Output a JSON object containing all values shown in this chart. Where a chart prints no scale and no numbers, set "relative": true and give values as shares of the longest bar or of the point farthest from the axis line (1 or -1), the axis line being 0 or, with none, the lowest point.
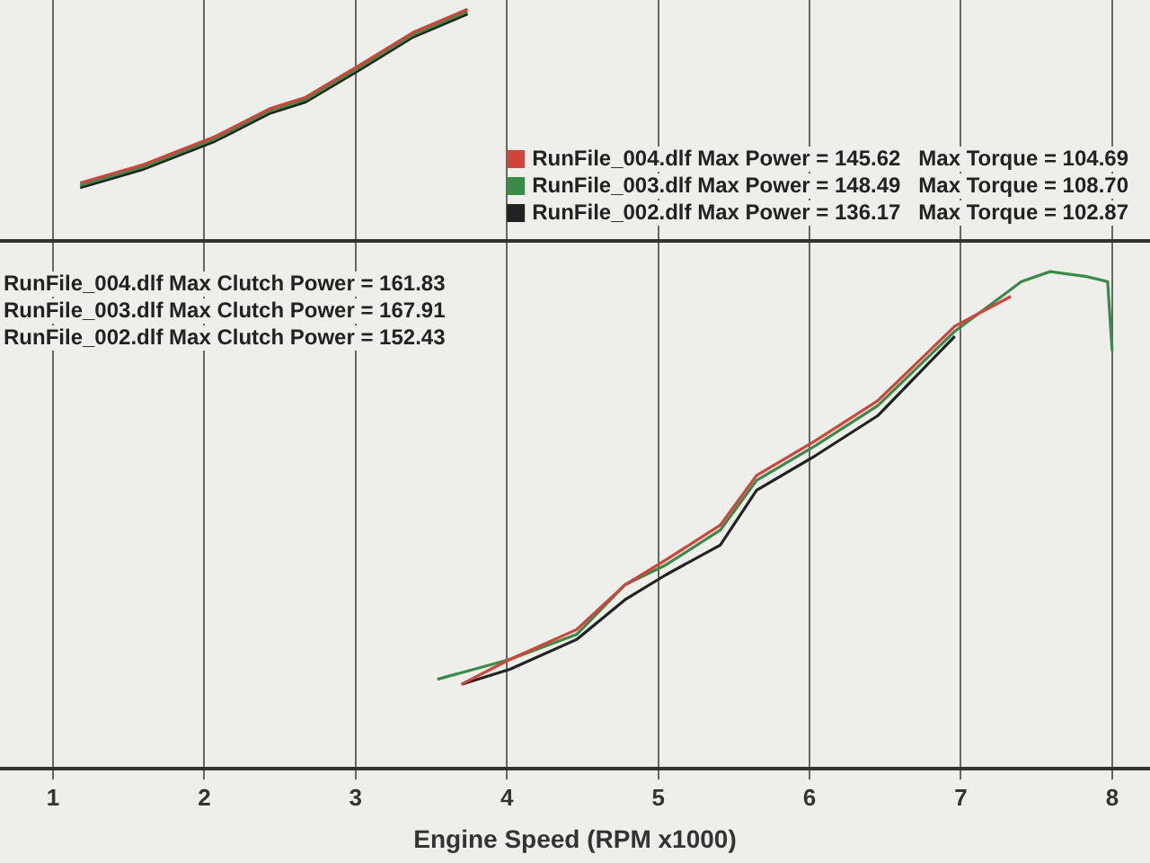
{
  "chart_data": [
    {
      "type": "line",
      "relative": true,
      "xlim": [
        0.65,
        8.25
      ],
      "xticks": [
        1,
        2,
        3,
        4,
        5,
        6,
        7,
        8
      ],
      "tick_labels": false,
      "grid": "x",
      "legend": "bottom right",
      "marker": "none",
      "series": [
        {
          "name": "RunFile_004.dlf Max Power = 145.62   Max Torque = 104.69",
          "color": "#d0453a",
          "x": [
            1.18,
            1.6,
            2.07,
            2.43,
            2.67,
            3.03,
            3.38,
            3.74
          ],
          "values": [
            0.25,
            0.33,
            0.45,
            0.57,
            0.62,
            0.76,
            0.9,
            1
          ]
        },
        {
          "name": "RunFile_003.dlf Max Power = 148.49   Max Torque = 108.70",
          "color": "#3a8a4a",
          "x": [
            1.18,
            1.6,
            2.07,
            2.43,
            2.67,
            3.03,
            3.38,
            3.74
          ],
          "values": [
            0.24,
            0.32,
            0.44,
            0.56,
            0.61,
            0.75,
            0.89,
            0.99
          ]
        },
        {
          "name": "RunFile_002.dlf Max Power = 136.17   Max Torque = 102.87",
          "color": "#222222",
          "x": [
            1.18,
            1.6,
            2.07,
            2.43,
            2.67,
            3.03,
            3.38,
            3.74
          ],
          "values": [
            0.23,
            0.31,
            0.43,
            0.55,
            0.6,
            0.74,
            0.88,
            0.98
          ]
        }
      ]
    },
    {
      "type": "line",
      "relative": true,
      "xlabel": "Engine Speed (RPM x1000)",
      "xlim": [
        0.65,
        8.25
      ],
      "xticks": [
        1,
        2,
        3,
        4,
        5,
        6,
        7,
        8
      ],
      "tick_labels": "x",
      "grid": "x",
      "marker": "none",
      "annotations": [
        "RunFile_004.dlf Max Clutch Power = 161.83",
        "RunFile_003.dlf Max Clutch Power = 167.91",
        "RunFile_002.dlf Max Clutch Power = 152.43"
      ],
      "series": [
        {
          "color": "#d0453a",
          "x": [
            3.7,
            4.02,
            4.46,
            4.78,
            5.05,
            5.41,
            5.65,
            6.04,
            6.45,
            6.96,
            7.33
          ],
          "values": [
            0.17,
            0.22,
            0.28,
            0.37,
            0.42,
            0.49,
            0.59,
            0.66,
            0.74,
            0.89,
            0.95
          ]
        },
        {
          "color": "#3a8a4a",
          "x": [
            3.54,
            4.02,
            4.46,
            4.78,
            5.05,
            5.41,
            5.65,
            6.04,
            6.45,
            6.96,
            7.4,
            7.59,
            7.83,
            7.97,
            8.0
          ],
          "values": [
            0.18,
            0.22,
            0.27,
            0.37,
            0.41,
            0.48,
            0.58,
            0.65,
            0.73,
            0.88,
            0.98,
            1,
            0.99,
            0.98,
            0.84
          ]
        },
        {
          "color": "#222222",
          "x": [
            3.7,
            4.02,
            4.46,
            4.78,
            5.05,
            5.41,
            5.65,
            6.04,
            6.45,
            6.96
          ],
          "values": [
            0.17,
            0.2,
            0.26,
            0.34,
            0.39,
            0.45,
            0.56,
            0.63,
            0.71,
            0.87
          ]
        }
      ]
    }
  ]
}
